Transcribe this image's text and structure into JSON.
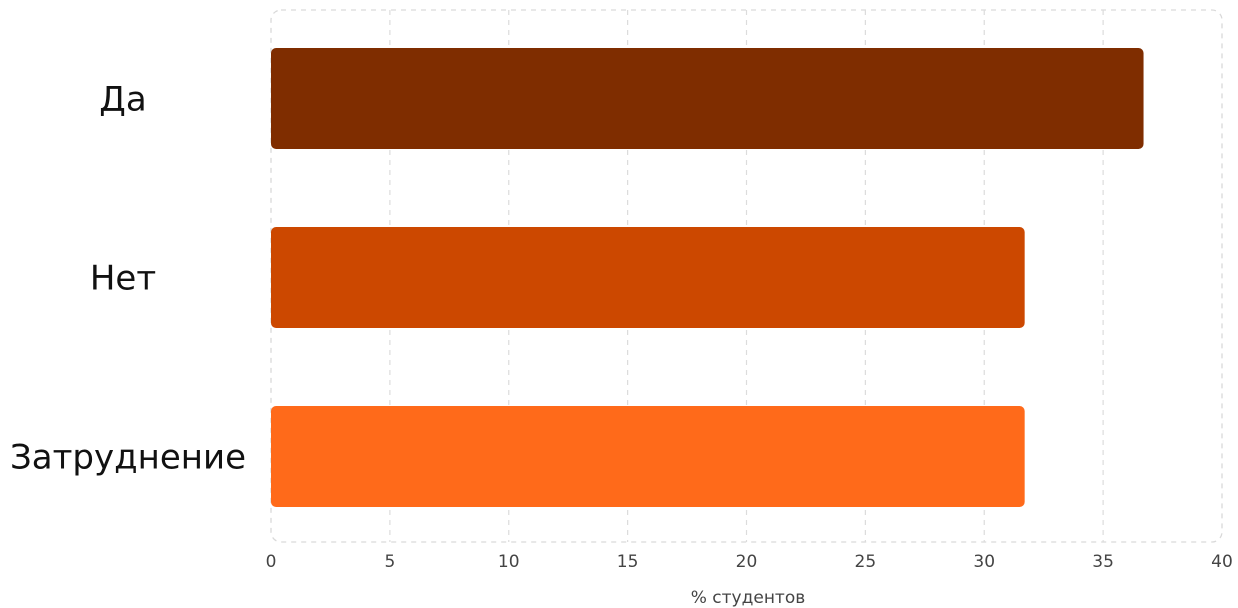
{
  "chart_data": {
    "type": "bar",
    "orientation": "horizontal",
    "categories": [
      "Да",
      "Нет",
      "Затруднение"
    ],
    "values": [
      36.7,
      31.7,
      31.7
    ],
    "colors": [
      "#7f2d00",
      "#cc4800",
      "#ff6a1a"
    ],
    "title": "",
    "xlabel": "% студентов",
    "ylabel": "",
    "xlim": [
      0,
      40
    ],
    "xticks": [
      0,
      5,
      10,
      15,
      20,
      25,
      30,
      35,
      40
    ],
    "grid": true
  }
}
